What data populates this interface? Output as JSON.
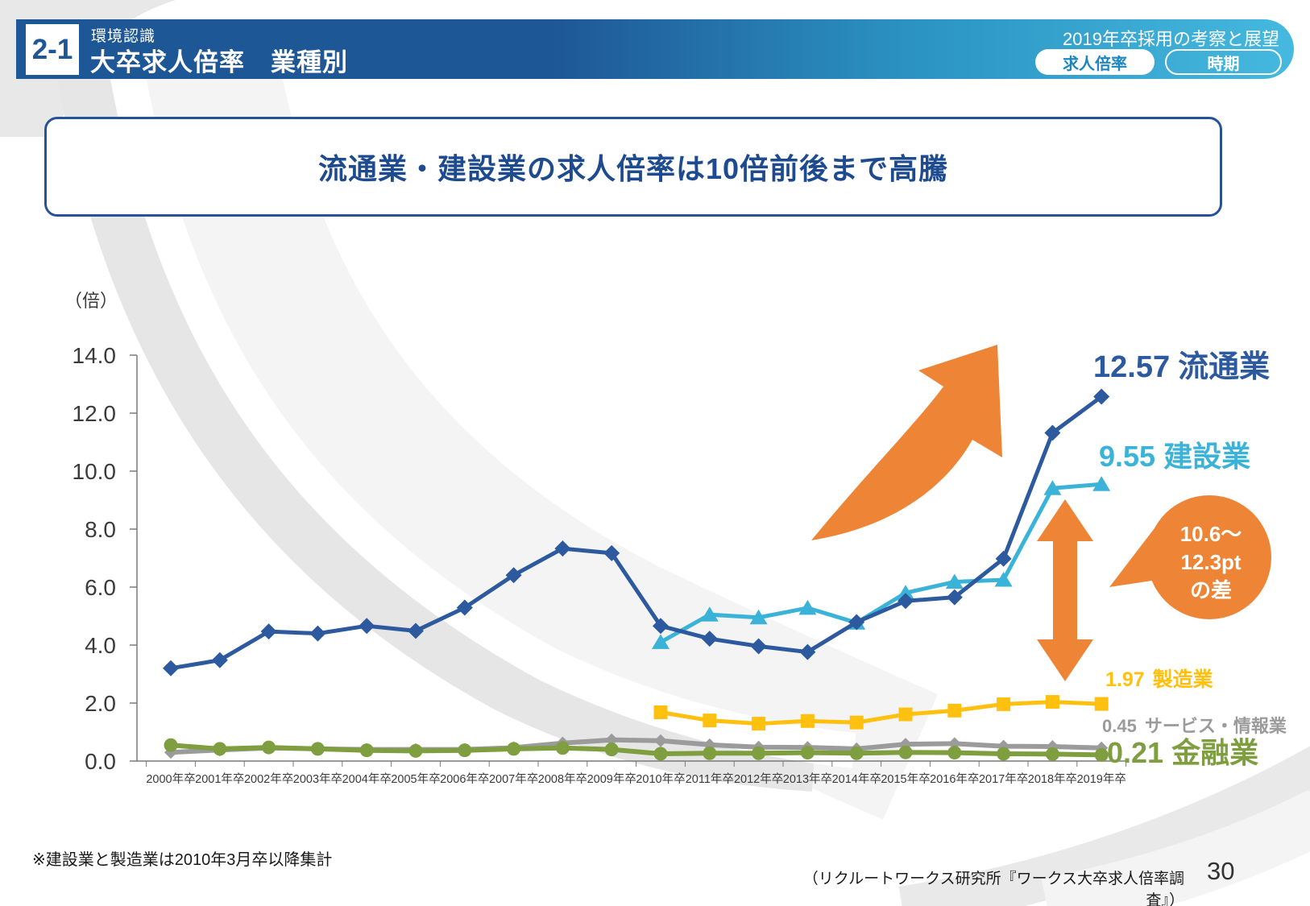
{
  "header": {
    "section_number": "2-1",
    "category": "環境認識",
    "title": "大卒求人倍率　業種別",
    "right_title": "2019年卒採用の考察と展望",
    "pill_active": "求人倍率",
    "pill_inactive": "時期"
  },
  "message": "流通業・建設業の求人倍率は10倍前後まで高騰",
  "chart_data": {
    "type": "line",
    "unit_label": "（倍）",
    "ylim": [
      0,
      14
    ],
    "y_ticks": [
      0,
      2,
      4,
      6,
      8,
      10,
      12,
      14
    ],
    "y_tick_labels": [
      "0.0",
      "2.0",
      "4.0",
      "6.0",
      "8.0",
      "10.0",
      "12.0",
      "14.0"
    ],
    "x_labels": [
      "2000年卒",
      "2001年卒",
      "2002年卒",
      "2003年卒",
      "2004年卒",
      "2005年卒",
      "2006年卒",
      "2007年卒",
      "2008年卒",
      "2009年卒",
      "2010年卒",
      "2011年卒",
      "2012年卒",
      "2013年卒",
      "2014年卒",
      "2015年卒",
      "2016年卒",
      "2017年卒",
      "2018年卒",
      "2019年卒"
    ],
    "grid": false,
    "legend_position": "end-of-line labels, right side",
    "series": [
      {
        "id": "distribution",
        "name": "流通業",
        "end_value": "12.57",
        "color": "#2D5A9E",
        "marker": "diamond",
        "marker_size": 10,
        "line_width": 5,
        "z": 5,
        "values": [
          3.2,
          3.48,
          4.47,
          4.4,
          4.66,
          4.49,
          5.29,
          6.41,
          7.33,
          7.17,
          4.66,
          4.22,
          3.96,
          3.76,
          4.79,
          5.52,
          5.65,
          6.98,
          11.32,
          12.57
        ]
      },
      {
        "id": "construction",
        "name": "建設業",
        "end_value": "9.55",
        "color": "#3BB3D8",
        "marker": "triangle",
        "marker_size": 10,
        "line_width": 5,
        "z": 4,
        "values": [
          null,
          null,
          null,
          null,
          null,
          null,
          null,
          null,
          null,
          null,
          4.1,
          5.05,
          4.95,
          5.28,
          4.77,
          5.8,
          6.18,
          6.25,
          9.41,
          9.55
        ]
      },
      {
        "id": "manufacturing",
        "name": "製造業",
        "end_value": "1.97",
        "color": "#FFC010",
        "marker": "square",
        "marker_size": 8.5,
        "line_width": 5,
        "z": 3,
        "values": [
          null,
          null,
          null,
          null,
          null,
          null,
          null,
          null,
          null,
          null,
          1.68,
          1.4,
          1.29,
          1.38,
          1.33,
          1.61,
          1.74,
          1.96,
          2.04,
          1.97
        ]
      },
      {
        "id": "service",
        "name": "サービス・情報業",
        "end_value": "0.45",
        "color": "#9B9B9B",
        "marker": "diamond",
        "marker_size": 8,
        "line_width": 6,
        "z": 1,
        "values": [
          0.3,
          0.38,
          0.45,
          0.42,
          0.4,
          0.4,
          0.4,
          0.46,
          0.62,
          0.73,
          0.7,
          0.56,
          0.48,
          0.47,
          0.42,
          0.58,
          0.6,
          0.51,
          0.5,
          0.45
        ]
      },
      {
        "id": "finance",
        "name": "金融業",
        "end_value": "0.21",
        "color": "#7E9E40",
        "marker": "circle",
        "marker_size": 8.5,
        "line_width": 6,
        "z": 2,
        "values": [
          0.55,
          0.42,
          0.47,
          0.42,
          0.37,
          0.35,
          0.37,
          0.42,
          0.45,
          0.4,
          0.25,
          0.27,
          0.27,
          0.29,
          0.27,
          0.3,
          0.29,
          0.25,
          0.24,
          0.21
        ]
      }
    ],
    "callout": {
      "line1": "10.6〜",
      "line2": "12.3pt",
      "line3": "の差"
    },
    "annotation_colors": {
      "orange": "#EE8435"
    }
  },
  "footnote": "※建設業と製造業は2010年3月卒以降集計",
  "source": "（リクルートワークス研究所『ワークス大卒求人倍率調査』）",
  "page_number": "30"
}
